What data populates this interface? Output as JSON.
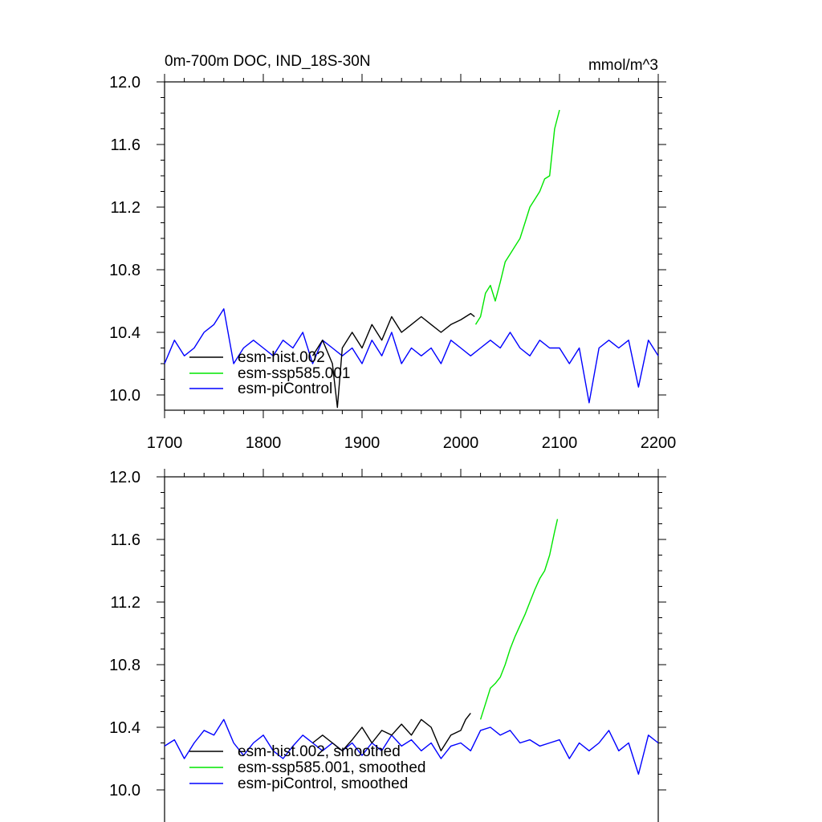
{
  "chart_data": [
    {
      "type": "line",
      "title": "0m-700m DOC, IND_18S-30N",
      "units": "mmol/m^3",
      "xlim": [
        1700,
        2200
      ],
      "ylim": [
        9.9,
        12.0
      ],
      "x_ticks": [
        "1700",
        "1800",
        "1900",
        "2000",
        "2100",
        "2200"
      ],
      "y_ticks": [
        "10.0",
        "10.4",
        "10.8",
        "11.2",
        "11.6",
        "12.0"
      ],
      "legend": {
        "placement": "lower-left"
      },
      "series": [
        {
          "name": "esm-hist.002",
          "color": "#000000",
          "x": [
            1850,
            1860,
            1870,
            1875,
            1880,
            1890,
            1900,
            1910,
            1920,
            1930,
            1940,
            1950,
            1960,
            1970,
            1980,
            1990,
            2000,
            2010,
            2014
          ],
          "y": [
            10.25,
            10.35,
            10.2,
            9.92,
            10.3,
            10.4,
            10.3,
            10.45,
            10.35,
            10.5,
            10.4,
            10.45,
            10.5,
            10.45,
            10.4,
            10.45,
            10.48,
            10.52,
            10.5
          ]
        },
        {
          "name": "esm-ssp585.001",
          "color": "#00e600",
          "x": [
            2015,
            2020,
            2025,
            2030,
            2035,
            2040,
            2045,
            2050,
            2055,
            2060,
            2065,
            2070,
            2075,
            2080,
            2085,
            2090,
            2095,
            2100
          ],
          "y": [
            10.45,
            10.5,
            10.65,
            10.7,
            10.6,
            10.72,
            10.85,
            10.9,
            10.95,
            11.0,
            11.1,
            11.2,
            11.25,
            11.3,
            11.38,
            11.4,
            11.7,
            11.82
          ]
        },
        {
          "name": "esm-piControl",
          "color": "#0000ff",
          "x": [
            1700,
            1710,
            1720,
            1730,
            1740,
            1750,
            1760,
            1770,
            1780,
            1790,
            1800,
            1810,
            1820,
            1830,
            1840,
            1850,
            1860,
            1870,
            1880,
            1890,
            1900,
            1910,
            1920,
            1930,
            1940,
            1950,
            1960,
            1970,
            1980,
            1990,
            2000,
            2010,
            2020,
            2030,
            2040,
            2050,
            2060,
            2070,
            2080,
            2090,
            2100,
            2110,
            2120,
            2130,
            2140,
            2150,
            2160,
            2170,
            2180,
            2190,
            2200
          ],
          "y": [
            10.2,
            10.35,
            10.25,
            10.3,
            10.4,
            10.45,
            10.55,
            10.2,
            10.3,
            10.35,
            10.3,
            10.25,
            10.35,
            10.3,
            10.4,
            10.2,
            10.35,
            10.3,
            10.25,
            10.3,
            10.2,
            10.35,
            10.25,
            10.4,
            10.2,
            10.3,
            10.25,
            10.3,
            10.2,
            10.35,
            10.3,
            10.25,
            10.3,
            10.35,
            10.3,
            10.4,
            10.3,
            10.25,
            10.35,
            10.3,
            10.3,
            10.2,
            10.3,
            9.95,
            10.3,
            10.35,
            10.3,
            10.35,
            10.05,
            10.35,
            10.25
          ]
        }
      ]
    },
    {
      "type": "line",
      "xlim": [
        1700,
        2200
      ],
      "ylim": [
        9.9,
        12.0
      ],
      "y_ticks": [
        "10.0",
        "10.4",
        "10.8",
        "11.2",
        "11.6",
        "12.0"
      ],
      "legend": {
        "placement": "lower-left"
      },
      "series": [
        {
          "name": "esm-hist.002, smoothed",
          "color": "#000000",
          "x": [
            1850,
            1860,
            1870,
            1880,
            1890,
            1900,
            1910,
            1920,
            1930,
            1940,
            1950,
            1960,
            1970,
            1980,
            1990,
            2000,
            2005,
            2010
          ],
          "y": [
            10.3,
            10.35,
            10.3,
            10.25,
            10.32,
            10.4,
            10.3,
            10.38,
            10.35,
            10.42,
            10.35,
            10.45,
            10.4,
            10.25,
            10.35,
            10.38,
            10.45,
            10.49
          ]
        },
        {
          "name": "esm-ssp585.001, smoothed",
          "color": "#00e600",
          "x": [
            2020,
            2025,
            2030,
            2035,
            2040,
            2045,
            2050,
            2055,
            2060,
            2065,
            2070,
            2075,
            2080,
            2085,
            2090,
            2095,
            2098
          ],
          "y": [
            10.45,
            10.55,
            10.65,
            10.68,
            10.72,
            10.8,
            10.9,
            10.98,
            11.05,
            11.12,
            11.2,
            11.28,
            11.35,
            11.4,
            11.5,
            11.65,
            11.73
          ]
        },
        {
          "name": "esm-piControl, smoothed",
          "color": "#0000ff",
          "x": [
            1700,
            1710,
            1720,
            1730,
            1740,
            1750,
            1760,
            1770,
            1780,
            1790,
            1800,
            1810,
            1820,
            1830,
            1840,
            1850,
            1860,
            1870,
            1880,
            1890,
            1900,
            1910,
            1920,
            1930,
            1940,
            1950,
            1960,
            1970,
            1980,
            1990,
            2000,
            2010,
            2020,
            2030,
            2040,
            2050,
            2060,
            2070,
            2080,
            2090,
            2100,
            2110,
            2120,
            2130,
            2140,
            2150,
            2160,
            2170,
            2180,
            2190,
            2200
          ],
          "y": [
            10.28,
            10.32,
            10.2,
            10.3,
            10.38,
            10.35,
            10.45,
            10.3,
            10.22,
            10.3,
            10.35,
            10.25,
            10.2,
            10.28,
            10.35,
            10.3,
            10.25,
            10.3,
            10.25,
            10.3,
            10.22,
            10.3,
            10.25,
            10.35,
            10.28,
            10.32,
            10.25,
            10.3,
            10.2,
            10.28,
            10.3,
            10.25,
            10.38,
            10.4,
            10.35,
            10.38,
            10.3,
            10.32,
            10.28,
            10.3,
            10.32,
            10.2,
            10.3,
            10.25,
            10.3,
            10.38,
            10.25,
            10.3,
            10.1,
            10.35,
            10.3
          ]
        }
      ]
    }
  ]
}
